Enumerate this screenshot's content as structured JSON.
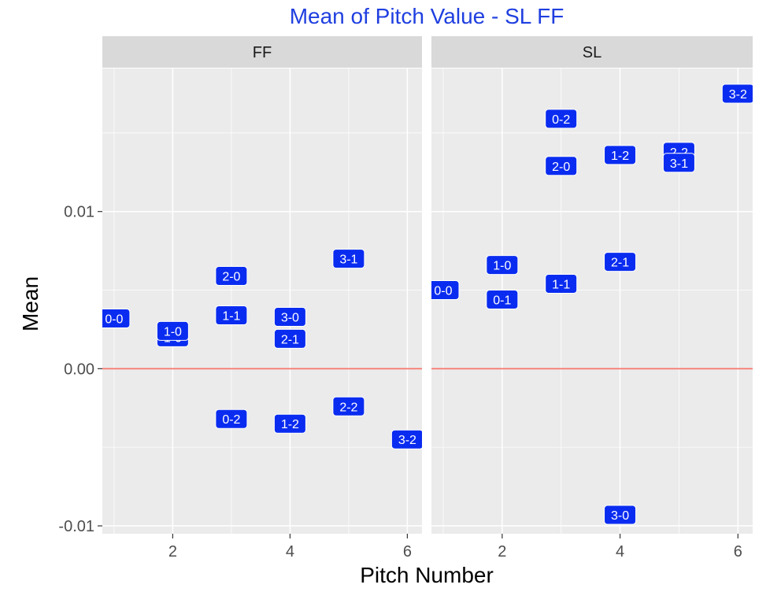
{
  "chart_data": {
    "type": "scatter",
    "title": "Mean of Pitch Value -  SL FF",
    "xlabel": "Pitch Number",
    "ylabel": "Mean",
    "xlim": [
      0.8,
      6.25
    ],
    "ylim": [
      -0.0105,
      0.0191
    ],
    "x_ticks": [
      2,
      4,
      6
    ],
    "x_tick_labels": [
      "2",
      "4",
      "6"
    ],
    "y_ticks": [
      -0.01,
      0.0,
      0.01
    ],
    "y_tick_labels": [
      "-0.01",
      "0.00",
      "0.01"
    ],
    "reference_line": {
      "y": 0,
      "color": "#f8766d"
    },
    "colors": {
      "title": "#1f3fe0",
      "label_fill": "#0a2cf0",
      "panel_bg": "#ebebeb",
      "strip_bg": "#d9d9d9",
      "grid": "#ffffff"
    },
    "grid": true,
    "facets": [
      {
        "name": "FF",
        "points": [
          {
            "x": 1,
            "y": 0.0032,
            "label": "0-0"
          },
          {
            "x": 2,
            "y": 0.002,
            "label": "1-0"
          },
          {
            "x": 2,
            "y": 0.0024,
            "label": "1-0"
          },
          {
            "x": 3,
            "y": 0.0059,
            "label": "2-0"
          },
          {
            "x": 3,
            "y": 0.0034,
            "label": "1-1"
          },
          {
            "x": 3,
            "y": -0.0032,
            "label": "0-2"
          },
          {
            "x": 4,
            "y": 0.0033,
            "label": "3-0"
          },
          {
            "x": 4,
            "y": 0.0019,
            "label": "2-1"
          },
          {
            "x": 4,
            "y": -0.0035,
            "label": "1-2"
          },
          {
            "x": 5,
            "y": 0.007,
            "label": "3-1"
          },
          {
            "x": 5,
            "y": -0.0024,
            "label": "2-2"
          },
          {
            "x": 6,
            "y": -0.0045,
            "label": "3-2"
          }
        ]
      },
      {
        "name": "SL",
        "points": [
          {
            "x": 1,
            "y": 0.005,
            "label": "0-0"
          },
          {
            "x": 2,
            "y": 0.0066,
            "label": "1-0"
          },
          {
            "x": 2,
            "y": 0.0044,
            "label": "0-1"
          },
          {
            "x": 3,
            "y": 0.0159,
            "label": "0-2"
          },
          {
            "x": 3,
            "y": 0.0129,
            "label": "2-0"
          },
          {
            "x": 3,
            "y": 0.0054,
            "label": "1-1"
          },
          {
            "x": 4,
            "y": 0.0136,
            "label": "1-2"
          },
          {
            "x": 4,
            "y": 0.0068,
            "label": "2-1"
          },
          {
            "x": 4,
            "y": -0.0093,
            "label": "3-0"
          },
          {
            "x": 5,
            "y": 0.0138,
            "label": "2-2"
          },
          {
            "x": 5,
            "y": 0.0131,
            "label": "3-1"
          },
          {
            "x": 6,
            "y": 0.0175,
            "label": "3-2"
          }
        ]
      }
    ]
  }
}
